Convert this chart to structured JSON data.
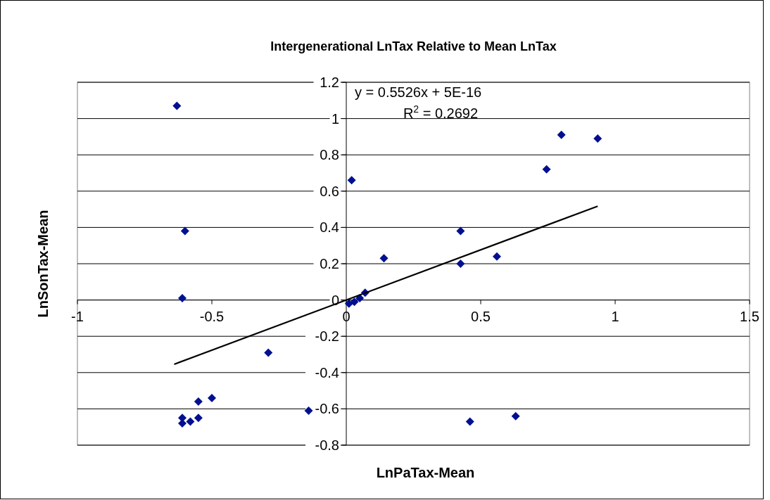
{
  "chart_data": {
    "type": "scatter",
    "title": "Intergenerational LnTax Relative to Mean LnTax",
    "xlabel": "LnPaTax-Mean",
    "ylabel": "LnSonTax-Mean",
    "xlim": [
      -1,
      1.5
    ],
    "xticks": [
      -1,
      -0.5,
      0,
      0.5,
      1,
      1.5
    ],
    "ylim": [
      -0.8,
      1.2
    ],
    "yticks": [
      -0.8,
      -0.6,
      -0.4,
      -0.2,
      0,
      0.2,
      0.4,
      0.6,
      0.8,
      1,
      1.2
    ],
    "grid": "y",
    "marker": "diamond",
    "annotations": [
      "y = 0.5526x + 5E-16",
      "R$^{2}$ = 0.2692"
    ],
    "series": [
      {
        "color": "#00108f",
        "x": [
          -0.63,
          -0.6,
          -0.61,
          -0.29,
          -0.5,
          -0.55,
          -0.61,
          -0.61,
          -0.58,
          -0.55,
          -0.14,
          0.46,
          0.63,
          0.02,
          0.14,
          0.425,
          0.425,
          0.56,
          0.745,
          0.8,
          0.935,
          0.07,
          0.05,
          0.03,
          0.01
        ],
        "values": [
          1.07,
          0.38,
          0.01,
          -0.29,
          -0.54,
          -0.56,
          -0.65,
          -0.68,
          -0.67,
          -0.65,
          -0.61,
          -0.67,
          -0.64,
          0.66,
          0.23,
          0.38,
          0.2,
          0.24,
          0.72,
          0.91,
          0.89,
          0.04,
          0.01,
          -0.01,
          -0.02
        ]
      },
      {
        "type": "line",
        "color": "#000000",
        "marker": "none",
        "x": [
          -0.64,
          0.935
        ],
        "values": [
          -0.354,
          0.517
        ]
      }
    ]
  }
}
